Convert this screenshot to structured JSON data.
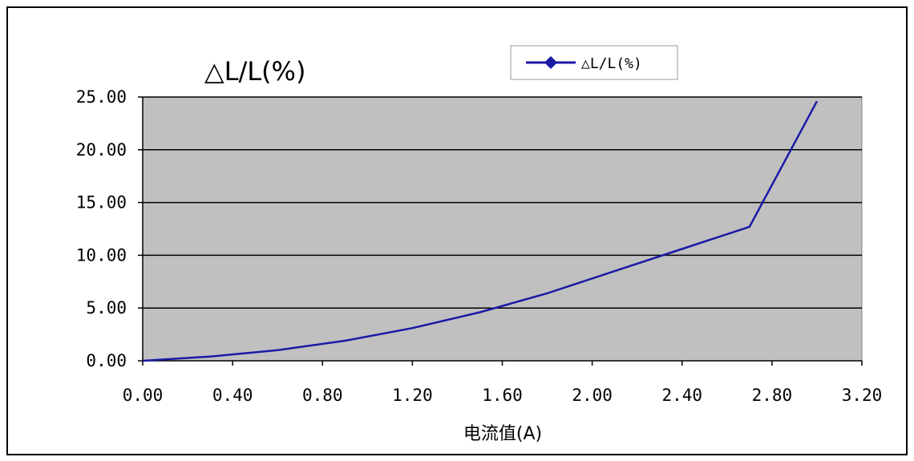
{
  "chart_data": {
    "type": "line",
    "title": "△L/L(%)",
    "xlabel": "电流值(A)",
    "ylabel": "",
    "xlim": [
      0,
      3.2
    ],
    "ylim": [
      0,
      25
    ],
    "x_ticks": [
      "0.00",
      "0.40",
      "0.80",
      "1.20",
      "1.60",
      "2.00",
      "2.40",
      "2.80",
      "3.20"
    ],
    "y_ticks": [
      "0.00",
      "5.00",
      "10.00",
      "15.00",
      "20.00",
      "25.00"
    ],
    "grid": "horizontal",
    "legend_position": "top-center",
    "plot_background": "#c0c0c0",
    "series": [
      {
        "name": "△L/L(%)",
        "color": "#1a1aa6",
        "x": [
          0.0,
          0.3,
          0.6,
          0.9,
          1.2,
          1.5,
          1.8,
          2.1,
          2.4,
          2.7,
          3.0
        ],
        "y": [
          0.0,
          0.4,
          1.0,
          1.9,
          3.1,
          4.6,
          6.4,
          8.5,
          10.6,
          12.7,
          24.6
        ]
      }
    ]
  }
}
